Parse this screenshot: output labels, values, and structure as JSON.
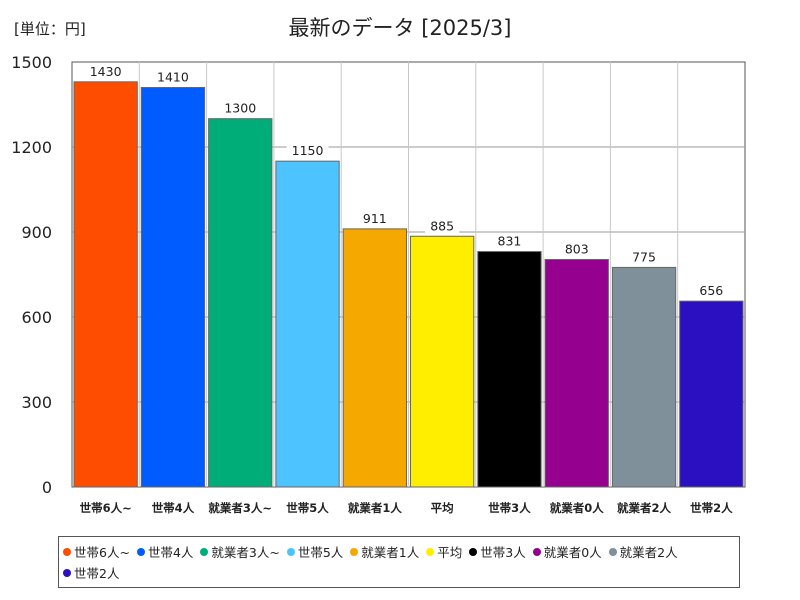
{
  "chart_data": {
    "type": "bar",
    "title": "最新のデータ [2025/3]",
    "unit_label": "[単位：円]",
    "xlabel": "",
    "ylabel": "",
    "ylim": [
      0,
      1500
    ],
    "yticks": [
      0,
      300,
      600,
      900,
      1200,
      1500
    ],
    "grid": true,
    "legend_position": "bottom",
    "categories": [
      "世帯6人~",
      "世帯4人",
      "就業者3人~",
      "世帯5人",
      "就業者1人",
      "平均",
      "世帯3人",
      "就業者0人",
      "就業者2人",
      "世帯2人"
    ],
    "values": [
      1430,
      1410,
      1300,
      1150,
      911,
      885,
      831,
      803,
      775,
      656
    ],
    "colors": [
      "#ff4d00",
      "#005cff",
      "#00ad78",
      "#4dc3ff",
      "#f5a800",
      "#ffee00",
      "#000000",
      "#96008f",
      "#80909b",
      "#2a10c0"
    ]
  }
}
